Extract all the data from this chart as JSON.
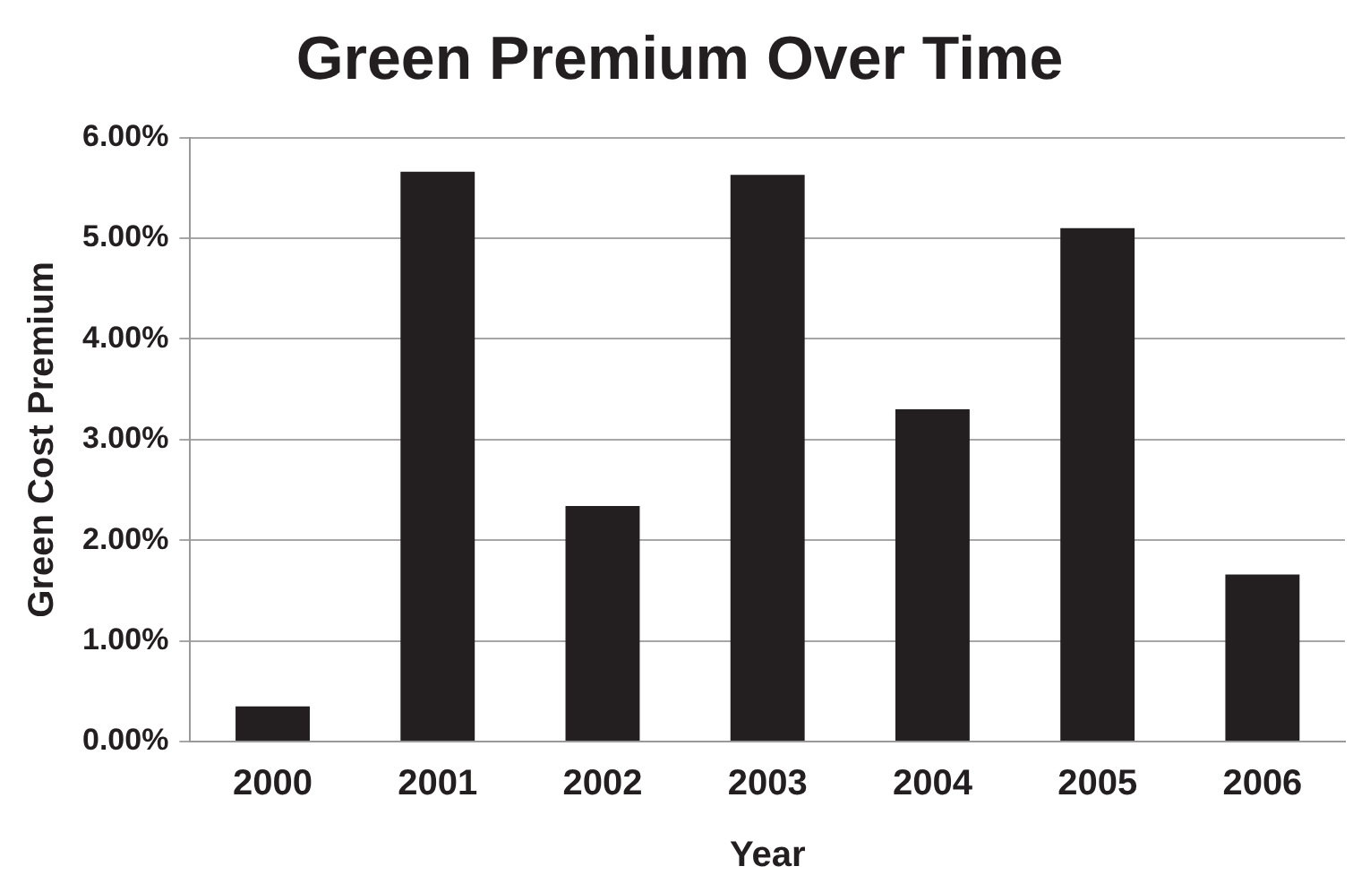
{
  "chart_data": {
    "type": "bar",
    "title": "Green Premium Over Time",
    "xlabel": "Year",
    "ylabel": "Green Cost Premium",
    "categories": [
      "2000",
      "2001",
      "2002",
      "2003",
      "2004",
      "2005",
      "2006"
    ],
    "values": [
      0.35,
      5.66,
      2.34,
      5.63,
      3.3,
      5.1,
      1.66
    ],
    "color": "#231f20",
    "ylim": [
      0,
      6
    ],
    "yticks": [
      {
        "value": 0,
        "label": "0.00%"
      },
      {
        "value": 1,
        "label": "1.00%"
      },
      {
        "value": 2,
        "label": "2.00%"
      },
      {
        "value": 3,
        "label": "3.00%"
      },
      {
        "value": 4,
        "label": "4.00%"
      },
      {
        "value": 5,
        "label": "5.00%"
      },
      {
        "value": 6,
        "label": "6.00%"
      }
    ],
    "grid": "y",
    "legend": false
  }
}
